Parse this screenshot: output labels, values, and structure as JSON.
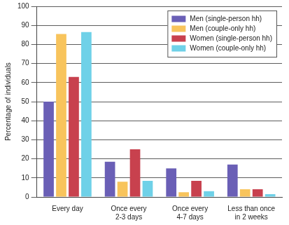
{
  "chart_data": {
    "type": "bar",
    "y_label": "Percentage of individuals",
    "categories": [
      "Every day",
      "Once every 2-3 days",
      "Once every 4-7 days",
      "Less than once in 2 weeks"
    ],
    "series": [
      {
        "name": "Men (single-person hh)",
        "color": "#6a5fb6",
        "values": [
          50,
          18.5,
          15,
          17
        ]
      },
      {
        "name": "Men (couple-only hh)",
        "color": "#f8c45c",
        "values": [
          85.5,
          8,
          2.5,
          4
        ]
      },
      {
        "name": "Women (single-person hh)",
        "color": "#c8414e",
        "values": [
          63,
          25,
          8.5,
          4
        ]
      },
      {
        "name": "Women (couple-only hh)",
        "color": "#6fd1e8",
        "values": [
          86.5,
          8.5,
          3,
          1.5
        ]
      }
    ],
    "ylim": [
      0,
      100
    ],
    "yticks": [
      0,
      10,
      20,
      30,
      40,
      50,
      60,
      70,
      80,
      90,
      100
    ],
    "grid": true,
    "legend": "upper right"
  }
}
